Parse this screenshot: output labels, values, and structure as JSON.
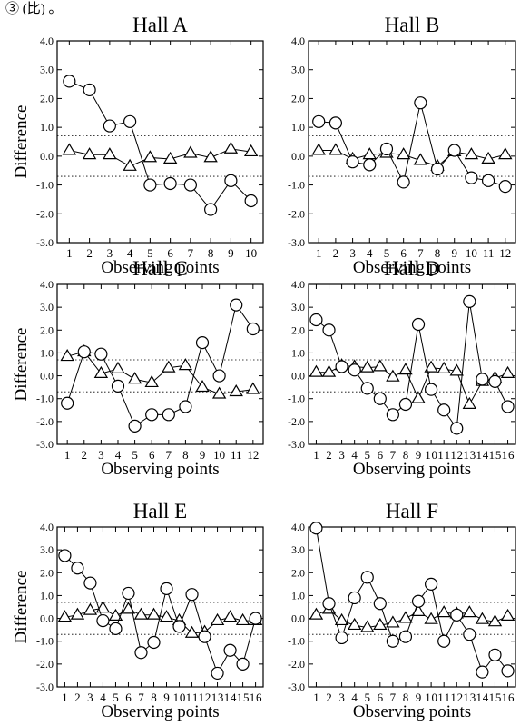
{
  "header_fragment": "③ (比) 。",
  "chart_data": [
    {
      "type": "line",
      "title": "Hall A",
      "xlabel": "Observing points",
      "ylabel": "Difference",
      "ylim": [
        -3.0,
        4.0
      ],
      "yticks": [
        "4.0",
        "3.0",
        "2.0",
        "1.0",
        "0.0",
        "-1.0",
        "-2.0",
        "-3.0"
      ],
      "reference_lines": [
        0.7,
        -0.7
      ],
      "x": [
        "1",
        "2",
        "3",
        "4",
        "5",
        "6",
        "7",
        "8",
        "9",
        "10"
      ],
      "series": [
        {
          "marker": "circle",
          "values": [
            2.6,
            2.3,
            1.05,
            1.2,
            -1.0,
            -0.95,
            -1.0,
            -1.85,
            -0.85,
            -1.55
          ]
        },
        {
          "marker": "triangle",
          "values": [
            0.2,
            0.05,
            0.05,
            -0.35,
            -0.05,
            -0.1,
            0.1,
            -0.05,
            0.25,
            0.15
          ]
        }
      ]
    },
    {
      "type": "line",
      "title": "Hall B",
      "xlabel": "Observing points",
      "ylabel": "",
      "ylim": [
        -3.0,
        4.0
      ],
      "yticks": [
        "4.0",
        "3.0",
        "2.0",
        "1.0",
        "0.0",
        "-1.0",
        "-2.0",
        "-3.0"
      ],
      "reference_lines": [
        0.7,
        -0.7
      ],
      "x": [
        "1",
        "2",
        "3",
        "4",
        "5",
        "6",
        "7",
        "8",
        "9",
        "10",
        "11",
        "12"
      ],
      "series": [
        {
          "marker": "circle",
          "values": [
            1.2,
            1.15,
            -0.2,
            -0.3,
            0.25,
            -0.9,
            1.85,
            -0.45,
            0.2,
            -0.75,
            -0.85,
            -1.05
          ]
        },
        {
          "marker": "triangle",
          "values": [
            0.2,
            0.2,
            -0.1,
            0.05,
            0.1,
            0.05,
            -0.15,
            -0.35,
            0.15,
            0.05,
            -0.1,
            0.05
          ]
        }
      ]
    },
    {
      "type": "line",
      "title": "Hall C",
      "xlabel": "Observing points",
      "ylabel": "Difference",
      "ylim": [
        -3.0,
        4.0
      ],
      "yticks": [
        "4.0",
        "3.0",
        "2.0",
        "1.0",
        "0.0",
        "-1.0",
        "-2.0",
        "-3.0"
      ],
      "reference_lines": [
        0.7,
        -0.7
      ],
      "x": [
        "1",
        "2",
        "3",
        "4",
        "5",
        "6",
        "7",
        "8",
        "9",
        "10",
        "11",
        "12"
      ],
      "series": [
        {
          "marker": "circle",
          "values": [
            -1.2,
            1.05,
            0.95,
            -0.45,
            -2.2,
            -1.7,
            -1.7,
            -1.35,
            1.45,
            0.0,
            3.1,
            2.05
          ]
        },
        {
          "marker": "triangle",
          "values": [
            0.85,
            1.05,
            0.1,
            0.3,
            -0.15,
            -0.3,
            0.35,
            0.45,
            -0.5,
            -0.8,
            -0.7,
            -0.6
          ]
        }
      ]
    },
    {
      "type": "line",
      "title": "Hall D",
      "xlabel": "Observing points",
      "ylabel": "",
      "ylim": [
        -3.0,
        4.0
      ],
      "yticks": [
        "4.0",
        "3.0",
        "2.0",
        "1.0",
        "0.0",
        "-1.0",
        "-2.0",
        "-3.0"
      ],
      "reference_lines": [
        0.7,
        -0.7
      ],
      "x": [
        "1",
        "2",
        "3",
        "4",
        "5",
        "6",
        "7",
        "8",
        "9",
        "10",
        "11",
        "12",
        "13",
        "14",
        "15",
        "16"
      ],
      "series": [
        {
          "marker": "circle",
          "values": [
            2.45,
            2.0,
            0.4,
            0.25,
            -0.55,
            -1.0,
            -1.7,
            -1.25,
            2.25,
            -0.6,
            -1.5,
            -2.3,
            3.25,
            -0.15,
            -0.25,
            -1.35
          ]
        },
        {
          "marker": "triangle",
          "values": [
            0.15,
            0.15,
            0.45,
            0.4,
            0.35,
            0.4,
            -0.05,
            0.25,
            -1.0,
            0.35,
            0.3,
            0.2,
            -1.25,
            -0.25,
            -0.1,
            0.1
          ]
        }
      ]
    },
    {
      "type": "line",
      "title": "Hall E",
      "xlabel": "Observing points",
      "ylabel": "Difference",
      "ylim": [
        -3.0,
        4.0
      ],
      "yticks": [
        "4.0",
        "3.0",
        "2.0",
        "1.0",
        "0.0",
        "-1.0",
        "-2.0",
        "-3.0"
      ],
      "reference_lines": [
        0.7,
        -0.7
      ],
      "x": [
        "1",
        "2",
        "3",
        "4",
        "5",
        "6",
        "7",
        "8",
        "9",
        "10",
        "11",
        "12",
        "13",
        "14",
        "15",
        "16"
      ],
      "series": [
        {
          "marker": "circle",
          "values": [
            2.75,
            2.2,
            1.55,
            -0.1,
            -0.45,
            1.1,
            -1.5,
            -1.05,
            1.3,
            -0.35,
            1.05,
            -0.8,
            -2.4,
            -1.4,
            -2.0,
            0.0
          ]
        },
        {
          "marker": "triangle",
          "values": [
            0.05,
            0.15,
            0.35,
            0.45,
            0.1,
            0.4,
            0.15,
            0.15,
            0.05,
            -0.1,
            -0.65,
            -0.6,
            -0.1,
            0.05,
            -0.1,
            -0.1
          ]
        }
      ]
    },
    {
      "type": "line",
      "title": "Hall F",
      "xlabel": "Observing points",
      "ylabel": "",
      "ylim": [
        -3.0,
        4.0
      ],
      "yticks": [
        "4.0",
        "3.0",
        "2.0",
        "1.0",
        "0.0",
        "-1.0",
        "-2.0",
        "-3.0"
      ],
      "reference_lines": [
        0.7,
        -0.7
      ],
      "x": [
        "1",
        "2",
        "3",
        "4",
        "5",
        "6",
        "7",
        "8",
        "9",
        "10",
        "11",
        "12",
        "13",
        "14",
        "15",
        "16"
      ],
      "series": [
        {
          "marker": "circle",
          "values": [
            3.95,
            0.65,
            -0.85,
            0.9,
            1.8,
            0.65,
            -1.0,
            -0.8,
            0.75,
            1.5,
            -1.0,
            0.15,
            -0.7,
            -2.35,
            -1.6,
            -2.3
          ]
        },
        {
          "marker": "triangle",
          "values": [
            0.15,
            0.4,
            -0.1,
            -0.3,
            -0.4,
            -0.3,
            -0.2,
            0.0,
            0.3,
            -0.05,
            0.25,
            0.2,
            0.25,
            -0.05,
            -0.15,
            0.1
          ]
        }
      ]
    }
  ]
}
